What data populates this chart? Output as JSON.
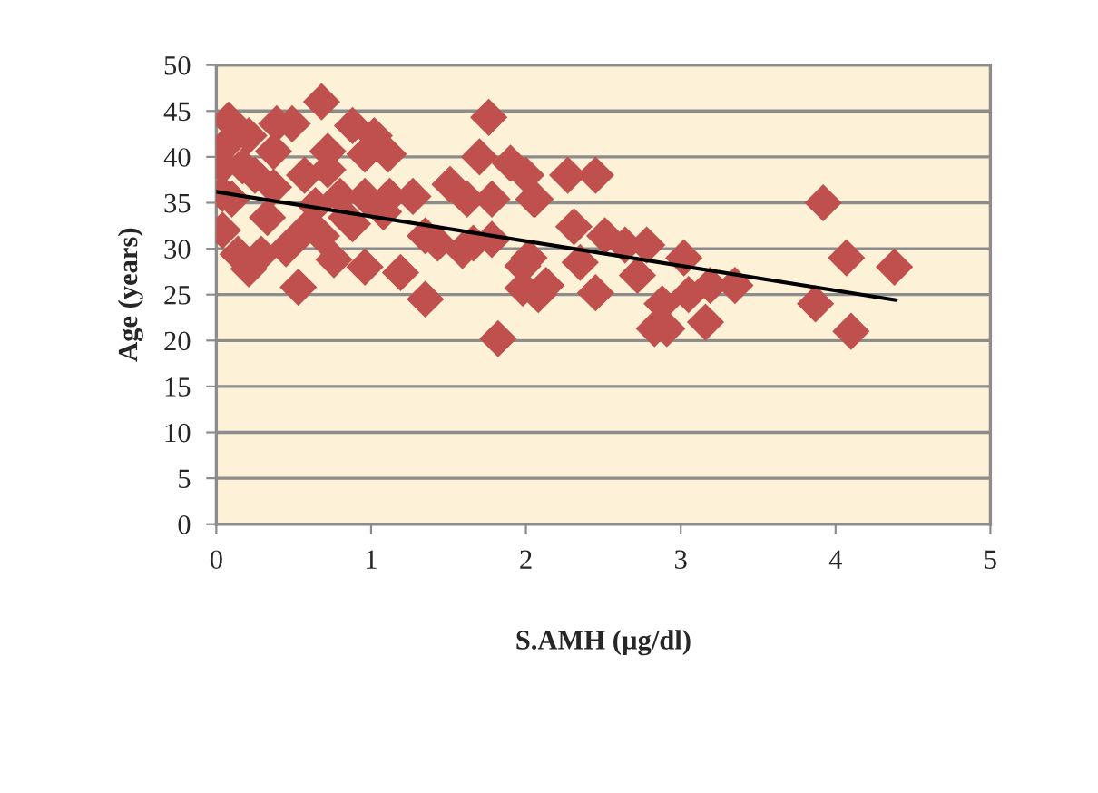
{
  "chart_data": {
    "type": "scatter",
    "xlabel": "S.AMH (µg/dl)",
    "ylabel": "Age (years)",
    "xlim": [
      0,
      5
    ],
    "xticks": [
      0,
      1,
      2,
      3,
      4,
      5
    ],
    "ylim": [
      0,
      50
    ],
    "yticks": [
      0,
      5,
      10,
      15,
      20,
      25,
      30,
      35,
      40,
      45,
      50
    ],
    "grid": "y",
    "legend": false,
    "marker": "diamond",
    "series": [
      {
        "color": "#c0504d",
        "x": [
          3.92,
          4.07,
          4.38,
          3.87,
          4.1,
          3.02,
          3.35,
          3.19,
          3.16,
          2.83,
          2.91,
          2.88,
          3.05,
          2.27,
          2.45,
          2.31,
          2.51,
          2.64,
          2.78,
          2.35,
          2.72,
          2.45,
          2.08,
          2.13,
          2.02,
          2.05,
          2.0,
          0.68,
          1.76,
          1.7,
          1.9,
          1.82,
          0.08,
          0.04,
          0.04,
          0.04,
          1.02,
          0.88,
          1.11,
          0.49,
          0.39,
          0.21,
          0.53,
          0.21,
          1.35,
          1.27,
          1.51,
          0.8,
          0.96,
          1.12,
          0.68,
          0.76,
          0.96,
          1.19,
          1.43,
          1.66,
          1.98,
          1.98,
          0.1,
          0.33,
          0.57,
          0.45,
          0.29,
          0.57,
          0.72,
          0.37,
          0.17,
          0.37,
          0.64,
          1.08,
          0.88,
          1.35,
          0.14,
          0.72,
          0.96,
          0.84,
          0.25,
          0.06,
          1.59,
          1.78,
          1.62,
          1.78,
          2.06
        ],
        "values": [
          35,
          29,
          28,
          24,
          21,
          29,
          26,
          26,
          22,
          21.3,
          21.3,
          24,
          25,
          38,
          38,
          32.4,
          31.4,
          30.4,
          30.4,
          28.5,
          27.1,
          25.2,
          25,
          26,
          29,
          35.4,
          38,
          46,
          44.3,
          40,
          39.3,
          20.2,
          44,
          32,
          39,
          36,
          42.3,
          43.4,
          40.3,
          43.6,
          43.6,
          42.3,
          25.8,
          27.8,
          24.5,
          35.7,
          37,
          35.7,
          35.7,
          35.7,
          31.4,
          28.8,
          28,
          27.4,
          30.6,
          30.6,
          28.1,
          25.7,
          35.4,
          33.4,
          32,
          30,
          29.4,
          38,
          40.6,
          40.6,
          39,
          36.7,
          34.7,
          34,
          32.7,
          31.4,
          29.4,
          38.6,
          40.3,
          33.4,
          38,
          41.3,
          29.8,
          31,
          35.4,
          35.4,
          35.4
        ]
      },
      {
        "type": "line",
        "color": "#000000",
        "marker": "none",
        "line_style": "solid",
        "x": [
          0,
          4.39
        ],
        "values": [
          36.2,
          24.4
        ]
      }
    ]
  }
}
